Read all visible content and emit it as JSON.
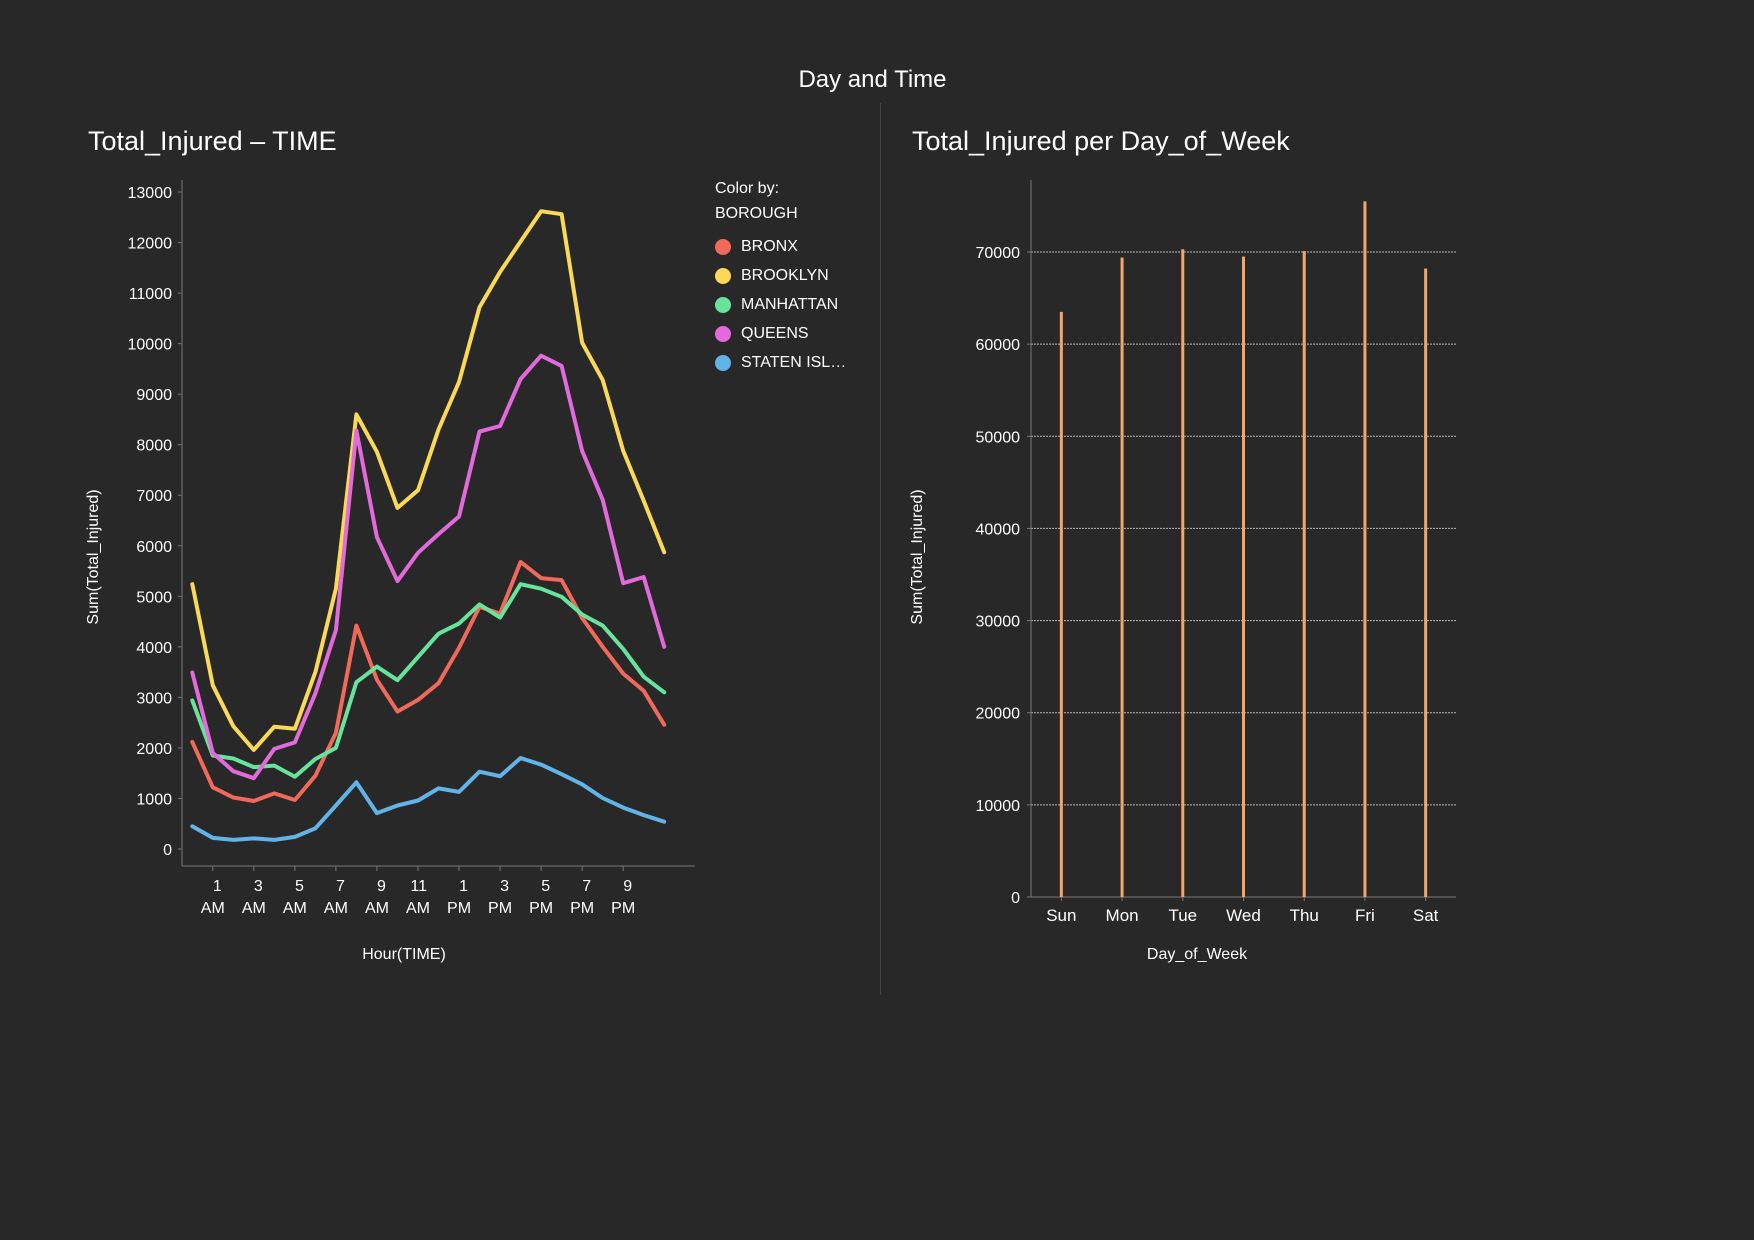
{
  "dashboard": {
    "title": "Day and Time",
    "background": "#282828",
    "divider_color": "#444444"
  },
  "line_panel": {
    "title": "Total_Injured – TIME",
    "legend": {
      "header_line1": "Color by:",
      "header_line2": "BOROUGH"
    }
  },
  "bar_panel": {
    "title": "Total_Injured per Day_of_Week"
  },
  "chart_data": [
    {
      "type": "line",
      "title": "Total_Injured – TIME",
      "xlabel": "Hour(TIME)",
      "ylabel": "Sum(Total_Injured)",
      "ylim": [
        0,
        13000
      ],
      "yticks": [
        0,
        1000,
        2000,
        3000,
        4000,
        5000,
        6000,
        7000,
        8000,
        9000,
        10000,
        11000,
        12000,
        13000
      ],
      "xlim": [
        -0.5,
        24.5
      ],
      "x": [
        0,
        1,
        2,
        3,
        4,
        5,
        6,
        7,
        8,
        9,
        10,
        11,
        12,
        13,
        14,
        15,
        16,
        17,
        18,
        19,
        20,
        21,
        22,
        23
      ],
      "xticks": [
        {
          "at": 1,
          "line1": "1",
          "line2": "AM"
        },
        {
          "at": 3,
          "line1": "3",
          "line2": "AM"
        },
        {
          "at": 5,
          "line1": "5",
          "line2": "AM"
        },
        {
          "at": 7,
          "line1": "7",
          "line2": "AM"
        },
        {
          "at": 9,
          "line1": "9",
          "line2": "AM"
        },
        {
          "at": 11,
          "line1": "11",
          "line2": "AM"
        },
        {
          "at": 13,
          "line1": "1",
          "line2": "PM"
        },
        {
          "at": 15,
          "line1": "3",
          "line2": "PM"
        },
        {
          "at": 17,
          "line1": "5",
          "line2": "PM"
        },
        {
          "at": 19,
          "line1": "7",
          "line2": "PM"
        },
        {
          "at": 21,
          "line1": "9",
          "line2": "PM"
        }
      ],
      "series": [
        {
          "name": "BRONX",
          "color": "#f0695a",
          "values": [
            2120,
            1220,
            1020,
            950,
            1100,
            970,
            1450,
            2300,
            4420,
            3350,
            2720,
            2950,
            3280,
            3980,
            4790,
            4660,
            5680,
            5360,
            5320,
            4570,
            4000,
            3470,
            3130,
            2460
          ]
        },
        {
          "name": "BROOKLYN",
          "color": "#fbd855",
          "values": [
            5240,
            3240,
            2430,
            1960,
            2420,
            2380,
            3500,
            5150,
            8600,
            7860,
            6750,
            7100,
            8300,
            9240,
            10720,
            11420,
            12020,
            12620,
            12560,
            10020,
            9280,
            7880,
            6890,
            5870
          ]
        },
        {
          "name": "MANHATTAN",
          "color": "#68e39c",
          "values": [
            2940,
            1850,
            1790,
            1620,
            1650,
            1430,
            1780,
            2000,
            3300,
            3610,
            3340,
            3800,
            4260,
            4460,
            4840,
            4580,
            5240,
            5150,
            4990,
            4640,
            4420,
            3960,
            3410,
            3100
          ]
        },
        {
          "name": "QUEENS",
          "color": "#e26adc",
          "values": [
            3490,
            1900,
            1540,
            1400,
            1980,
            2110,
            3080,
            4330,
            8280,
            6170,
            5300,
            5860,
            6230,
            6580,
            8260,
            8370,
            9300,
            9760,
            9560,
            7880,
            6910,
            5260,
            5380,
            4000
          ]
        },
        {
          "name": "STATEN ISL…",
          "color": "#62b4e8",
          "values": [
            450,
            220,
            180,
            210,
            180,
            240,
            410,
            860,
            1320,
            710,
            860,
            960,
            1200,
            1130,
            1530,
            1440,
            1800,
            1670,
            1480,
            1280,
            1010,
            820,
            670,
            540
          ]
        }
      ]
    },
    {
      "type": "bar",
      "title": "Total_Injured per Day_of_Week",
      "xlabel": "Day_of_Week",
      "ylabel": "Sum(Total_Injured)",
      "ylim": [
        0,
        77000
      ],
      "yticks": [
        0,
        10000,
        20000,
        30000,
        40000,
        50000,
        60000,
        70000
      ],
      "grid": true,
      "bar_color": "#f5a46b",
      "categories": [
        "Sun",
        "Mon",
        "Tue",
        "Wed",
        "Thu",
        "Fri",
        "Sat"
      ],
      "values": [
        63500,
        69400,
        70300,
        69500,
        70100,
        75500,
        68200
      ]
    }
  ]
}
